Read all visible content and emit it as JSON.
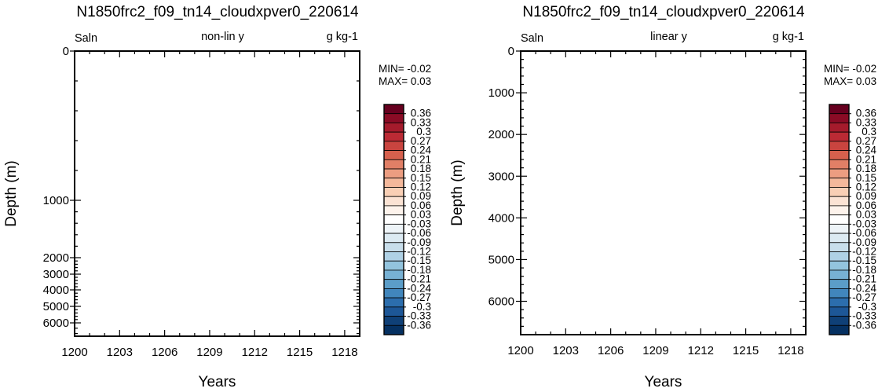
{
  "chart_data": [
    {
      "type": "heatmap",
      "title": "N1850frc2_f09_tn14_cloudxpver0_220614",
      "left_string": "Saln",
      "center_string": "non-lin y",
      "right_string": "g kg-1",
      "xlabel": "Years",
      "ylabel": "Depth (m)",
      "x_ticks": [
        "1200",
        "1203",
        "1206",
        "1209",
        "1212",
        "1215",
        "1218"
      ],
      "xlim": [
        1200,
        1219
      ],
      "y_scale": "nonlinear",
      "y_ticks": [
        "0",
        "1000",
        "2000",
        "3000",
        "4000",
        "5000",
        "6000"
      ],
      "ylim": [
        6500,
        0
      ],
      "stats": {
        "min": "MIN= -0.02",
        "max": "MAX=  0.03"
      },
      "grid": false
    },
    {
      "type": "heatmap",
      "title": "N1850frc2_f09_tn14_cloudxpver0_220614",
      "left_string": "Saln",
      "center_string": "linear y",
      "right_string": "g kg-1",
      "xlabel": "Years",
      "ylabel": "Depth (m)",
      "x_ticks": [
        "1200",
        "1203",
        "1206",
        "1209",
        "1212",
        "1215",
        "1218"
      ],
      "xlim": [
        1200,
        1219
      ],
      "y_scale": "linear",
      "y_ticks": [
        "0",
        "1000",
        "2000",
        "3000",
        "4000",
        "5000",
        "6000"
      ],
      "ylim": [
        6800,
        0
      ],
      "stats": {
        "min": "MIN= -0.02",
        "max": "MAX=  0.03"
      },
      "grid": false
    }
  ],
  "colorbar": {
    "labels": [
      "0.36",
      "0.33",
      "0.3",
      "0.27",
      "0.24",
      "0.21",
      "0.18",
      "0.15",
      "0.12",
      "0.09",
      "0.06",
      "0.03",
      "-0.03",
      "-0.06",
      "-0.09",
      "-0.12",
      "-0.15",
      "-0.18",
      "-0.21",
      "-0.24",
      "-0.27",
      "-0.3",
      "-0.33",
      "-0.36"
    ],
    "colors": [
      "#67001f",
      "#8a0b25",
      "#a51b2c",
      "#bb2a34",
      "#c9443f",
      "#d6604d",
      "#e17f66",
      "#ec9d81",
      "#f4b89b",
      "#f9cfb5",
      "#fbe3d4",
      "#fdf3ec",
      "#ffffff",
      "#eef4f8",
      "#dceaf2",
      "#c8deeb",
      "#afd1e5",
      "#93c4de",
      "#77b1d4",
      "#5b9dc8",
      "#4186bc",
      "#2c6ead",
      "#1d5797",
      "#0f4077",
      "#053061"
    ]
  }
}
